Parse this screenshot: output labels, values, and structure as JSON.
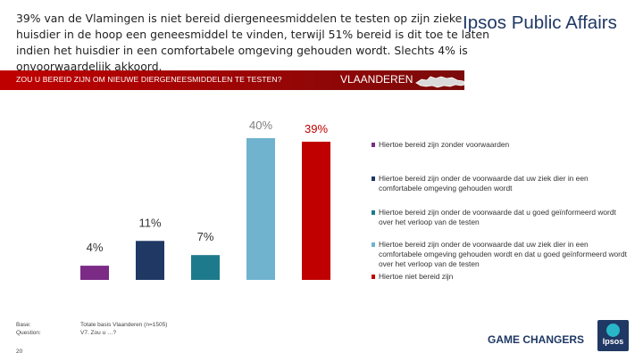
{
  "headline": "39% van de Vlamingen is niet bereid diergeneesmiddelen te testen op zijn zieke huisdier in de hoop een geneesmiddel te vinden, terwijl 51% bereid is dit toe te laten indien het huisdier in een comfortabele omgeving gehouden wordt. Slechts 4% is onvoorwaardelijk akkoord.",
  "brand": "Ipsos Public Affairs",
  "question": "ZOU U BEREID ZIJN OM NIEUWE DIERGENEESMIDDELEN TE TESTEN?",
  "region": "VLAANDEREN",
  "footer": {
    "base_label": "Base:",
    "question_label": "Question:",
    "base_value": "Totale basis Vlaanderen (n=1505)",
    "question_value": "V7. Zou u …?",
    "page_number": "20",
    "tagline": "GAME CHANGERS",
    "logo_text": "Ipsos"
  },
  "chart_data": {
    "type": "bar",
    "title": "ZOU U BEREID ZIJN OM NIEUWE DIERGENEESMIDDELEN TE TESTEN?",
    "categories": [
      "Hiertoe bereid zijn zonder voorwaarden",
      "Hiertoe bereid zijn onder de voorwaarde dat uw ziek dier in een comfortabele omgeving gehouden wordt",
      "Hiertoe bereid zijn onder de voorwaarde dat u goed geïnformeerd wordt over het verloop van de testen",
      "Hiertoe bereid zijn onder de voorwaarde dat uw ziek dier in een comfortabele omgeving gehouden wordt en dat u goed geïnformeerd wordt over het verloop van de testen",
      "Hiertoe niet bereid zijn"
    ],
    "values": [
      4,
      11,
      7,
      40,
      39
    ],
    "value_labels": [
      "4%",
      "11%",
      "7%",
      "40%",
      "39%"
    ],
    "colors": [
      "#7b2a86",
      "#1f3864",
      "#1d7a8c",
      "#6fb3cf",
      "#c00000"
    ],
    "label_colors": [
      "#333333",
      "#333333",
      "#333333",
      "#7f7f7f",
      "#c00000"
    ],
    "xlabel": "",
    "ylabel": "",
    "ylim": [
      0,
      40
    ],
    "grid": false,
    "legend_position": "right"
  }
}
